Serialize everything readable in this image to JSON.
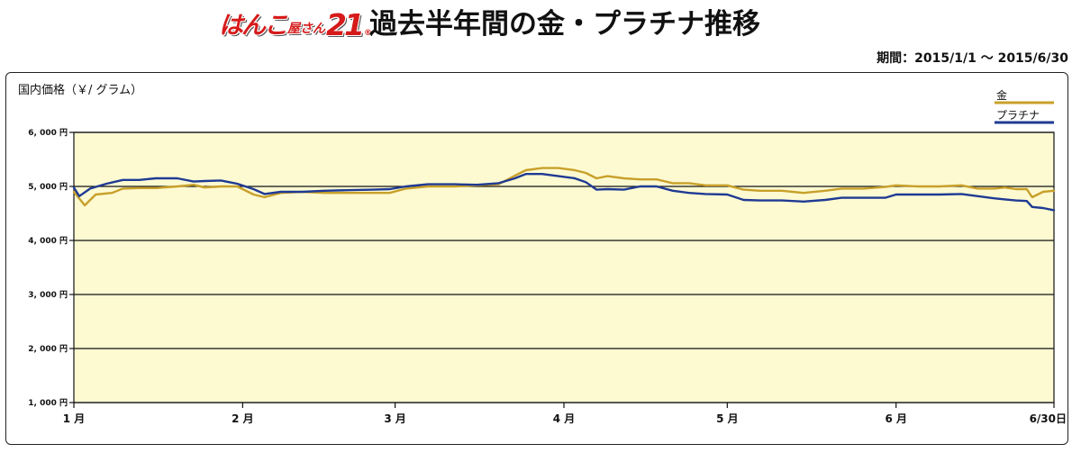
{
  "header": {
    "logo_main": "はんこ",
    "logo_sub": "屋さん",
    "logo_num": "21",
    "logo_reg": "®",
    "title": "過去半年間の金・プラチナ推移",
    "period": "期間：2015/1/1 〜 2015/6/30"
  },
  "chart_data": {
    "type": "line",
    "ylabel": "国内価格（￥/ グラム）",
    "ylim": [
      1000,
      6000
    ],
    "yticks": [
      {
        "value": 6000,
        "label": "6, 000 円"
      },
      {
        "value": 5000,
        "label": "5, 000 円"
      },
      {
        "value": 4000,
        "label": "4, 000 円"
      },
      {
        "value": 3000,
        "label": "3, 000 円"
      },
      {
        "value": 2000,
        "label": "2, 000 円"
      },
      {
        "value": 1000,
        "label": "1, 000 円"
      }
    ],
    "xlim": [
      "2015-01-01",
      "2015-06-30"
    ],
    "xticks": [
      {
        "date": "2015-01-01",
        "label": "1 月"
      },
      {
        "date": "2015-02-01",
        "label": "2 月"
      },
      {
        "date": "2015-03-01",
        "label": "3 月"
      },
      {
        "date": "2015-04-01",
        "label": "4 月"
      },
      {
        "date": "2015-05-01",
        "label": "5 月"
      },
      {
        "date": "2015-06-01",
        "label": "6 月"
      },
      {
        "date": "2015-06-30",
        "label": "6/30日"
      }
    ],
    "grid": true,
    "legend": "top-right",
    "background": "#fdfad2",
    "series": [
      {
        "name": "金",
        "color": "#c8a02a",
        "points": [
          [
            "2015-01-01",
            4900
          ],
          [
            "2015-01-03",
            4650
          ],
          [
            "2015-01-05",
            4850
          ],
          [
            "2015-01-08",
            4880
          ],
          [
            "2015-01-10",
            4960
          ],
          [
            "2015-01-13",
            4970
          ],
          [
            "2015-01-16",
            4970
          ],
          [
            "2015-01-20",
            5000
          ],
          [
            "2015-01-23",
            5030
          ],
          [
            "2015-01-25",
            4980
          ],
          [
            "2015-01-28",
            5000
          ],
          [
            "2015-01-31",
            5000
          ],
          [
            "2015-02-03",
            4850
          ],
          [
            "2015-02-05",
            4800
          ],
          [
            "2015-02-08",
            4880
          ],
          [
            "2015-02-12",
            4900
          ],
          [
            "2015-02-16",
            4880
          ],
          [
            "2015-02-20",
            4880
          ],
          [
            "2015-02-25",
            4880
          ],
          [
            "2015-02-28",
            4880
          ],
          [
            "2015-03-03",
            4960
          ],
          [
            "2015-03-07",
            5000
          ],
          [
            "2015-03-12",
            5000
          ],
          [
            "2015-03-16",
            5020
          ],
          [
            "2015-03-20",
            5040
          ],
          [
            "2015-03-23",
            5200
          ],
          [
            "2015-03-25",
            5300
          ],
          [
            "2015-03-28",
            5340
          ],
          [
            "2015-03-31",
            5340
          ],
          [
            "2015-04-03",
            5300
          ],
          [
            "2015-04-05",
            5250
          ],
          [
            "2015-04-07",
            5150
          ],
          [
            "2015-04-09",
            5190
          ],
          [
            "2015-04-12",
            5150
          ],
          [
            "2015-04-15",
            5130
          ],
          [
            "2015-04-18",
            5130
          ],
          [
            "2015-04-21",
            5060
          ],
          [
            "2015-04-24",
            5060
          ],
          [
            "2015-04-27",
            5020
          ],
          [
            "2015-05-01",
            5020
          ],
          [
            "2015-05-04",
            4940
          ],
          [
            "2015-05-07",
            4920
          ],
          [
            "2015-05-11",
            4920
          ],
          [
            "2015-05-15",
            4880
          ],
          [
            "2015-05-19",
            4920
          ],
          [
            "2015-05-22",
            4960
          ],
          [
            "2015-05-26",
            4960
          ],
          [
            "2015-05-30",
            4990
          ],
          [
            "2015-06-01",
            5020
          ],
          [
            "2015-06-05",
            5000
          ],
          [
            "2015-06-09",
            5000
          ],
          [
            "2015-06-13",
            5020
          ],
          [
            "2015-06-16",
            4960
          ],
          [
            "2015-06-19",
            4960
          ],
          [
            "2015-06-21",
            4980
          ],
          [
            "2015-06-23",
            4950
          ],
          [
            "2015-06-25",
            4950
          ],
          [
            "2015-06-26",
            4800
          ],
          [
            "2015-06-28",
            4900
          ],
          [
            "2015-06-30",
            4920
          ]
        ]
      },
      {
        "name": "プラチナ",
        "color": "#1f3a93",
        "points": [
          [
            "2015-01-01",
            4980
          ],
          [
            "2015-01-02",
            4820
          ],
          [
            "2015-01-04",
            4960
          ],
          [
            "2015-01-07",
            5050
          ],
          [
            "2015-01-10",
            5120
          ],
          [
            "2015-01-13",
            5120
          ],
          [
            "2015-01-16",
            5150
          ],
          [
            "2015-01-20",
            5150
          ],
          [
            "2015-01-23",
            5090
          ],
          [
            "2015-01-25",
            5100
          ],
          [
            "2015-01-28",
            5110
          ],
          [
            "2015-01-31",
            5050
          ],
          [
            "2015-02-03",
            4950
          ],
          [
            "2015-02-05",
            4860
          ],
          [
            "2015-02-08",
            4900
          ],
          [
            "2015-02-12",
            4900
          ],
          [
            "2015-02-16",
            4920
          ],
          [
            "2015-02-20",
            4930
          ],
          [
            "2015-02-25",
            4940
          ],
          [
            "2015-02-28",
            4950
          ],
          [
            "2015-03-03",
            5000
          ],
          [
            "2015-03-07",
            5040
          ],
          [
            "2015-03-12",
            5040
          ],
          [
            "2015-03-16",
            5030
          ],
          [
            "2015-03-20",
            5060
          ],
          [
            "2015-03-23",
            5150
          ],
          [
            "2015-03-25",
            5230
          ],
          [
            "2015-03-28",
            5230
          ],
          [
            "2015-03-31",
            5190
          ],
          [
            "2015-04-03",
            5150
          ],
          [
            "2015-04-05",
            5080
          ],
          [
            "2015-04-07",
            4940
          ],
          [
            "2015-04-09",
            4950
          ],
          [
            "2015-04-12",
            4940
          ],
          [
            "2015-04-15",
            5000
          ],
          [
            "2015-04-18",
            5000
          ],
          [
            "2015-04-21",
            4920
          ],
          [
            "2015-04-24",
            4880
          ],
          [
            "2015-04-27",
            4860
          ],
          [
            "2015-05-01",
            4850
          ],
          [
            "2015-05-04",
            4750
          ],
          [
            "2015-05-07",
            4740
          ],
          [
            "2015-05-11",
            4740
          ],
          [
            "2015-05-15",
            4720
          ],
          [
            "2015-05-19",
            4750
          ],
          [
            "2015-05-22",
            4790
          ],
          [
            "2015-05-26",
            4790
          ],
          [
            "2015-05-30",
            4790
          ],
          [
            "2015-06-01",
            4850
          ],
          [
            "2015-06-05",
            4850
          ],
          [
            "2015-06-09",
            4850
          ],
          [
            "2015-06-13",
            4860
          ],
          [
            "2015-06-16",
            4820
          ],
          [
            "2015-06-19",
            4780
          ],
          [
            "2015-06-21",
            4760
          ],
          [
            "2015-06-23",
            4740
          ],
          [
            "2015-06-25",
            4730
          ],
          [
            "2015-06-26",
            4620
          ],
          [
            "2015-06-28",
            4600
          ],
          [
            "2015-06-30",
            4560
          ]
        ]
      }
    ]
  }
}
